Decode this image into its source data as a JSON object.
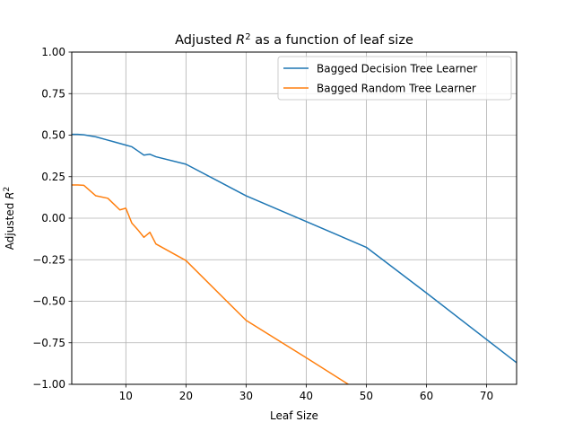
{
  "chart_data": {
    "type": "line",
    "title_prefix": "Adjusted ",
    "title_symbol": "R",
    "title_superscript": "2",
    "title_suffix": " as a function of leaf size",
    "xlabel": "Leaf Size",
    "ylabel_prefix": "Adjusted ",
    "ylabel_symbol": "R",
    "ylabel_superscript": "2",
    "xlim": [
      1,
      75
    ],
    "ylim": [
      -1.0,
      1.0
    ],
    "xticks": [
      10,
      20,
      30,
      40,
      50,
      60,
      70
    ],
    "xtick_labels": [
      "10",
      "20",
      "30",
      "40",
      "50",
      "60",
      "70"
    ],
    "yticks": [
      -1.0,
      -0.75,
      -0.5,
      -0.25,
      0.0,
      0.25,
      0.5,
      0.75,
      1.0
    ],
    "ytick_labels": [
      "−1.00",
      "−0.75",
      "−0.50",
      "−0.25",
      "0.00",
      "0.25",
      "0.50",
      "0.75",
      "1.00"
    ],
    "grid": true,
    "legend_position": "top-right",
    "series": [
      {
        "name": "Bagged Decision Tree Learner",
        "color": "#1f77b4",
        "x": [
          1,
          2,
          3,
          5,
          7,
          9,
          10,
          11,
          12,
          13,
          14,
          15,
          20,
          30,
          40,
          50,
          60,
          75
        ],
        "y": [
          0.505,
          0.505,
          0.502,
          0.49,
          0.47,
          0.45,
          0.44,
          0.43,
          0.405,
          0.38,
          0.385,
          0.37,
          0.325,
          0.135,
          -0.02,
          -0.175,
          -0.45,
          -0.87
        ]
      },
      {
        "name": "Bagged Random Tree Learner",
        "color": "#ff7f0e",
        "x": [
          1,
          2,
          3,
          5,
          7,
          9,
          10,
          11,
          12,
          13,
          14,
          15,
          20,
          30,
          40,
          47
        ],
        "y": [
          0.2,
          0.2,
          0.198,
          0.135,
          0.12,
          0.05,
          0.06,
          -0.03,
          -0.07,
          -0.115,
          -0.085,
          -0.155,
          -0.255,
          -0.615,
          -0.84,
          -1.0
        ]
      }
    ]
  }
}
